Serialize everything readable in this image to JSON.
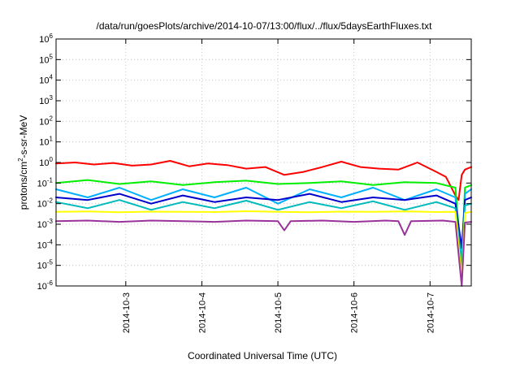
{
  "chart_data": {
    "type": "line",
    "title": "/data/run/goesPlots/archive/2014-10-07/13:00/flux/../flux/5daysEarthFluxes.txt",
    "xlabel": "Coordinated Universal Time (UTC)",
    "ylabel": {
      "prefix": "protons/cm",
      "superscript": "2",
      "suffix": "-s-sr-MeV"
    },
    "yscale": "log",
    "ylim": [
      1e-06,
      1000000.0
    ],
    "y_tick_labels": [
      {
        "base": "10",
        "exp": "-6",
        "value": 1e-06
      },
      {
        "base": "10",
        "exp": "-5",
        "value": 1e-05
      },
      {
        "base": "10",
        "exp": "-4",
        "value": 0.0001
      },
      {
        "base": "10",
        "exp": "-3",
        "value": 0.001
      },
      {
        "base": "10",
        "exp": "-2",
        "value": 0.01
      },
      {
        "base": "10",
        "exp": "-1",
        "value": 0.1
      },
      {
        "base": "10",
        "exp": "0",
        "value": 1
      },
      {
        "base": "10",
        "exp": "1",
        "value": 10
      },
      {
        "base": "10",
        "exp": "2",
        "value": 100
      },
      {
        "base": "10",
        "exp": "3",
        "value": 1000
      },
      {
        "base": "10",
        "exp": "4",
        "value": 10000
      },
      {
        "base": "10",
        "exp": "5",
        "value": 100000
      },
      {
        "base": "10",
        "exp": "6",
        "value": 1000000
      }
    ],
    "xlim": [
      "2014-10-02T02:00",
      "2014-10-07T13:00"
    ],
    "x_tick_labels": [
      "2014-10-3",
      "2014-10-4",
      "2014-10-5",
      "2014-10-6",
      "2014-10-7"
    ],
    "x_tick_values": [
      "2014-10-03T00:00",
      "2014-10-04T00:00",
      "2014-10-05T00:00",
      "2014-10-06T00:00",
      "2014-10-07T00:00"
    ],
    "grid": true,
    "series": [
      {
        "color": "#ff0000",
        "x": [
          "2014-10-02T02:00",
          "2014-10-02T08:00",
          "2014-10-02T14:00",
          "2014-10-02T20:00",
          "2014-10-03T02:00",
          "2014-10-03T08:00",
          "2014-10-03T14:00",
          "2014-10-03T20:00",
          "2014-10-04T02:00",
          "2014-10-04T08:00",
          "2014-10-04T14:00",
          "2014-10-04T20:00",
          "2014-10-05T02:00",
          "2014-10-05T08:00",
          "2014-10-05T14:00",
          "2014-10-05T20:00",
          "2014-10-06T02:00",
          "2014-10-06T08:00",
          "2014-10-06T14:00",
          "2014-10-06T20:00",
          "2014-10-07T02:00",
          "2014-10-07T05:00",
          "2014-10-07T08:00",
          "2014-10-07T09:00",
          "2014-10-07T10:00",
          "2014-10-07T11:00",
          "2014-10-07T13:00"
        ],
        "y": [
          0.9,
          1.0,
          0.8,
          0.95,
          0.7,
          0.8,
          1.2,
          0.65,
          0.9,
          0.75,
          0.5,
          0.6,
          0.25,
          0.35,
          0.6,
          1.1,
          0.6,
          0.5,
          0.45,
          1.0,
          0.35,
          0.2,
          0.025,
          0.015,
          0.25,
          0.45,
          0.6
        ]
      },
      {
        "color": "#00ee00",
        "x": [
          "2014-10-02T02:00",
          "2014-10-02T12:00",
          "2014-10-02T22:00",
          "2014-10-03T08:00",
          "2014-10-03T18:00",
          "2014-10-04T04:00",
          "2014-10-04T14:00",
          "2014-10-05T00:00",
          "2014-10-05T10:00",
          "2014-10-05T20:00",
          "2014-10-06T06:00",
          "2014-10-06T16:00",
          "2014-10-07T02:00",
          "2014-10-07T08:00",
          "2014-10-07T10:00",
          "2014-10-07T11:00",
          "2014-10-07T13:00"
        ],
        "y": [
          0.1,
          0.14,
          0.09,
          0.12,
          0.08,
          0.11,
          0.13,
          0.09,
          0.1,
          0.12,
          0.08,
          0.11,
          0.1,
          0.06,
          1e-05,
          0.06,
          0.08
        ]
      },
      {
        "color": "#00b0ff",
        "x": [
          "2014-10-02T02:00",
          "2014-10-02T12:00",
          "2014-10-02T22:00",
          "2014-10-03T08:00",
          "2014-10-03T18:00",
          "2014-10-04T04:00",
          "2014-10-04T14:00",
          "2014-10-05T00:00",
          "2014-10-05T10:00",
          "2014-10-05T20:00",
          "2014-10-06T06:00",
          "2014-10-06T16:00",
          "2014-10-07T02:00",
          "2014-10-07T08:00",
          "2014-10-07T10:00",
          "2014-10-07T11:00",
          "2014-10-07T13:00"
        ],
        "y": [
          0.05,
          0.02,
          0.06,
          0.015,
          0.05,
          0.02,
          0.06,
          0.01,
          0.05,
          0.02,
          0.06,
          0.015,
          0.05,
          0.02,
          5e-06,
          0.03,
          0.05
        ]
      },
      {
        "color": "#0000cc",
        "x": [
          "2014-10-02T02:00",
          "2014-10-02T12:00",
          "2014-10-02T22:00",
          "2014-10-03T08:00",
          "2014-10-03T18:00",
          "2014-10-04T04:00",
          "2014-10-04T14:00",
          "2014-10-05T00:00",
          "2014-10-05T10:00",
          "2014-10-05T20:00",
          "2014-10-06T06:00",
          "2014-10-06T16:00",
          "2014-10-07T02:00",
          "2014-10-07T08:00",
          "2014-10-07T10:00",
          "2014-10-07T11:00",
          "2014-10-07T13:00"
        ],
        "y": [
          0.02,
          0.015,
          0.03,
          0.01,
          0.025,
          0.012,
          0.02,
          0.015,
          0.03,
          0.012,
          0.02,
          0.015,
          0.025,
          0.01,
          7e-05,
          0.015,
          0.02
        ]
      },
      {
        "color": "#00bbbb",
        "x": [
          "2014-10-02T02:00",
          "2014-10-02T12:00",
          "2014-10-02T22:00",
          "2014-10-03T08:00",
          "2014-10-03T18:00",
          "2014-10-04T04:00",
          "2014-10-04T14:00",
          "2014-10-05T00:00",
          "2014-10-05T10:00",
          "2014-10-05T20:00",
          "2014-10-06T06:00",
          "2014-10-06T16:00",
          "2014-10-07T02:00",
          "2014-10-07T08:00",
          "2014-10-07T10:00",
          "2014-10-07T11:00",
          "2014-10-07T13:00"
        ],
        "y": [
          0.012,
          0.006,
          0.015,
          0.005,
          0.012,
          0.006,
          0.014,
          0.005,
          0.012,
          0.006,
          0.013,
          0.005,
          0.012,
          0.006,
          1.5e-05,
          0.008,
          0.01
        ]
      },
      {
        "color": "#ffff00",
        "x": [
          "2014-10-02T02:00",
          "2014-10-02T12:00",
          "2014-10-02T22:00",
          "2014-10-03T08:00",
          "2014-10-03T18:00",
          "2014-10-04T04:00",
          "2014-10-04T14:00",
          "2014-10-05T00:00",
          "2014-10-05T10:00",
          "2014-10-05T20:00",
          "2014-10-06T06:00",
          "2014-10-06T16:00",
          "2014-10-07T02:00",
          "2014-10-07T08:00",
          "2014-10-07T10:00",
          "2014-10-07T11:00",
          "2014-10-07T13:00"
        ],
        "y": [
          0.004,
          0.0042,
          0.0038,
          0.0041,
          0.004,
          0.0039,
          0.0043,
          0.004,
          0.0038,
          0.0041,
          0.004,
          0.0042,
          0.0039,
          0.004,
          2e-06,
          0.0035,
          0.004
        ]
      },
      {
        "color": "#993399",
        "x": [
          "2014-10-02T02:00",
          "2014-10-02T12:00",
          "2014-10-02T22:00",
          "2014-10-03T08:00",
          "2014-10-03T18:00",
          "2014-10-04T04:00",
          "2014-10-04T14:00",
          "2014-10-05T00:00",
          "2014-10-05T02:00",
          "2014-10-05T04:00",
          "2014-10-05T14:00",
          "2014-10-06T00:00",
          "2014-10-06T10:00",
          "2014-10-06T14:00",
          "2014-10-06T16:00",
          "2014-10-06T18:00",
          "2014-10-07T04:00",
          "2014-10-07T08:00",
          "2014-10-07T10:00",
          "2014-10-07T11:00",
          "2014-10-07T13:00"
        ],
        "y": [
          0.0014,
          0.0015,
          0.0013,
          0.0015,
          0.0014,
          0.0013,
          0.0015,
          0.0014,
          0.0005,
          0.0014,
          0.0015,
          0.0013,
          0.0015,
          0.0014,
          0.0003,
          0.0014,
          0.0015,
          0.0013,
          1e-06,
          0.0012,
          0.0013
        ]
      }
    ]
  }
}
